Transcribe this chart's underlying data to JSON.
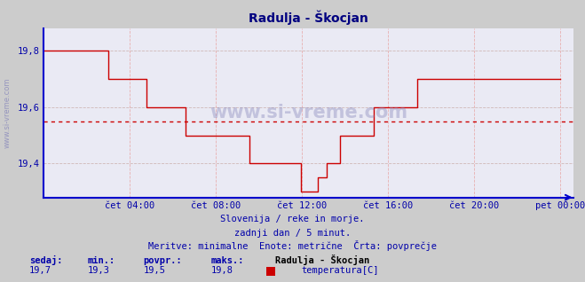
{
  "title": "Radulja - Škocjan",
  "title_color": "#000080",
  "bg_color": "#cccccc",
  "plot_bg_color": "#eaeaf4",
  "line_color": "#cc0000",
  "avg_line_color": "#cc0000",
  "avg_value": 19.55,
  "ylim": [
    19.28,
    19.88
  ],
  "yticks": [
    19.4,
    19.6,
    19.8
  ],
  "yticklabels": [
    "19,4",
    "19,6",
    "19,8"
  ],
  "tick_color": "#0000aa",
  "grid_color_h": "#d0b8b8",
  "grid_color_v": "#e8b0b0",
  "spine_color": "#0000cc",
  "watermark_side": "www.si-vreme.com",
  "watermark_center": "www.si-vreme.com",
  "footer_line1": "Slovenija / reke in morje.",
  "footer_line2": "zadnji dan / 5 minut.",
  "footer_line3": "Meritve: minimalne  Enote: metrične  Črta: povprečje",
  "footer_color": "#0000aa",
  "legend_vals": {
    "sedaj": "19,7",
    "min": "19,3",
    "povpr": "19,5",
    "maks": "19,8"
  },
  "legend_series_name": "Radulja - Škocjan",
  "legend_series_unit": "temperatura[C]",
  "xtick_labels": [
    "čet 04:00",
    "čet 08:00",
    "čet 12:00",
    "čet 16:00",
    "čet 20:00",
    "pet 00:00"
  ],
  "temperature_data": [
    19.8,
    19.8,
    19.8,
    19.8,
    19.8,
    19.8,
    19.8,
    19.8,
    19.8,
    19.8,
    19.8,
    19.8,
    19.8,
    19.8,
    19.8,
    19.8,
    19.8,
    19.8,
    19.8,
    19.8,
    19.8,
    19.8,
    19.8,
    19.8,
    19.8,
    19.8,
    19.8,
    19.8,
    19.8,
    19.8,
    19.7,
    19.7,
    19.7,
    19.7,
    19.7,
    19.7,
    19.7,
    19.7,
    19.7,
    19.7,
    19.7,
    19.7,
    19.7,
    19.7,
    19.7,
    19.7,
    19.7,
    19.7,
    19.6,
    19.6,
    19.6,
    19.6,
    19.6,
    19.6,
    19.6,
    19.6,
    19.6,
    19.6,
    19.6,
    19.6,
    19.6,
    19.6,
    19.6,
    19.6,
    19.6,
    19.6,
    19.5,
    19.5,
    19.5,
    19.5,
    19.5,
    19.5,
    19.5,
    19.5,
    19.5,
    19.5,
    19.5,
    19.5,
    19.5,
    19.5,
    19.5,
    19.5,
    19.5,
    19.5,
    19.5,
    19.5,
    19.5,
    19.5,
    19.5,
    19.5,
    19.5,
    19.5,
    19.5,
    19.5,
    19.5,
    19.5,
    19.4,
    19.4,
    19.4,
    19.4,
    19.4,
    19.4,
    19.4,
    19.4,
    19.4,
    19.4,
    19.4,
    19.4,
    19.4,
    19.4,
    19.4,
    19.4,
    19.4,
    19.4,
    19.4,
    19.4,
    19.4,
    19.4,
    19.4,
    19.4,
    19.3,
    19.3,
    19.3,
    19.3,
    19.3,
    19.3,
    19.3,
    19.3,
    19.35,
    19.35,
    19.35,
    19.35,
    19.4,
    19.4,
    19.4,
    19.4,
    19.4,
    19.4,
    19.5,
    19.5,
    19.5,
    19.5,
    19.5,
    19.5,
    19.5,
    19.5,
    19.5,
    19.5,
    19.5,
    19.5,
    19.5,
    19.5,
    19.5,
    19.5,
    19.6,
    19.6,
    19.6,
    19.6,
    19.6,
    19.6,
    19.6,
    19.6,
    19.6,
    19.6,
    19.6,
    19.6,
    19.6,
    19.6,
    19.6,
    19.6,
    19.6,
    19.6,
    19.6,
    19.6,
    19.7,
    19.7,
    19.7,
    19.7,
    19.7,
    19.7,
    19.7,
    19.7,
    19.7,
    19.7,
    19.7,
    19.7,
    19.7,
    19.7,
    19.7,
    19.7,
    19.7,
    19.7,
    19.7,
    19.7,
    19.7,
    19.7,
    19.7,
    19.7,
    19.7,
    19.7,
    19.7,
    19.7,
    19.7,
    19.7,
    19.7,
    19.7,
    19.7,
    19.7,
    19.7,
    19.7,
    19.7,
    19.7,
    19.7,
    19.7,
    19.7,
    19.7,
    19.7,
    19.7,
    19.7,
    19.7,
    19.7,
    19.7,
    19.7,
    19.7,
    19.7,
    19.7,
    19.7,
    19.7,
    19.7,
    19.7,
    19.7,
    19.7,
    19.7,
    19.7,
    19.7,
    19.7,
    19.7,
    19.7,
    19.7,
    19.7,
    19.7,
    19.7
  ]
}
